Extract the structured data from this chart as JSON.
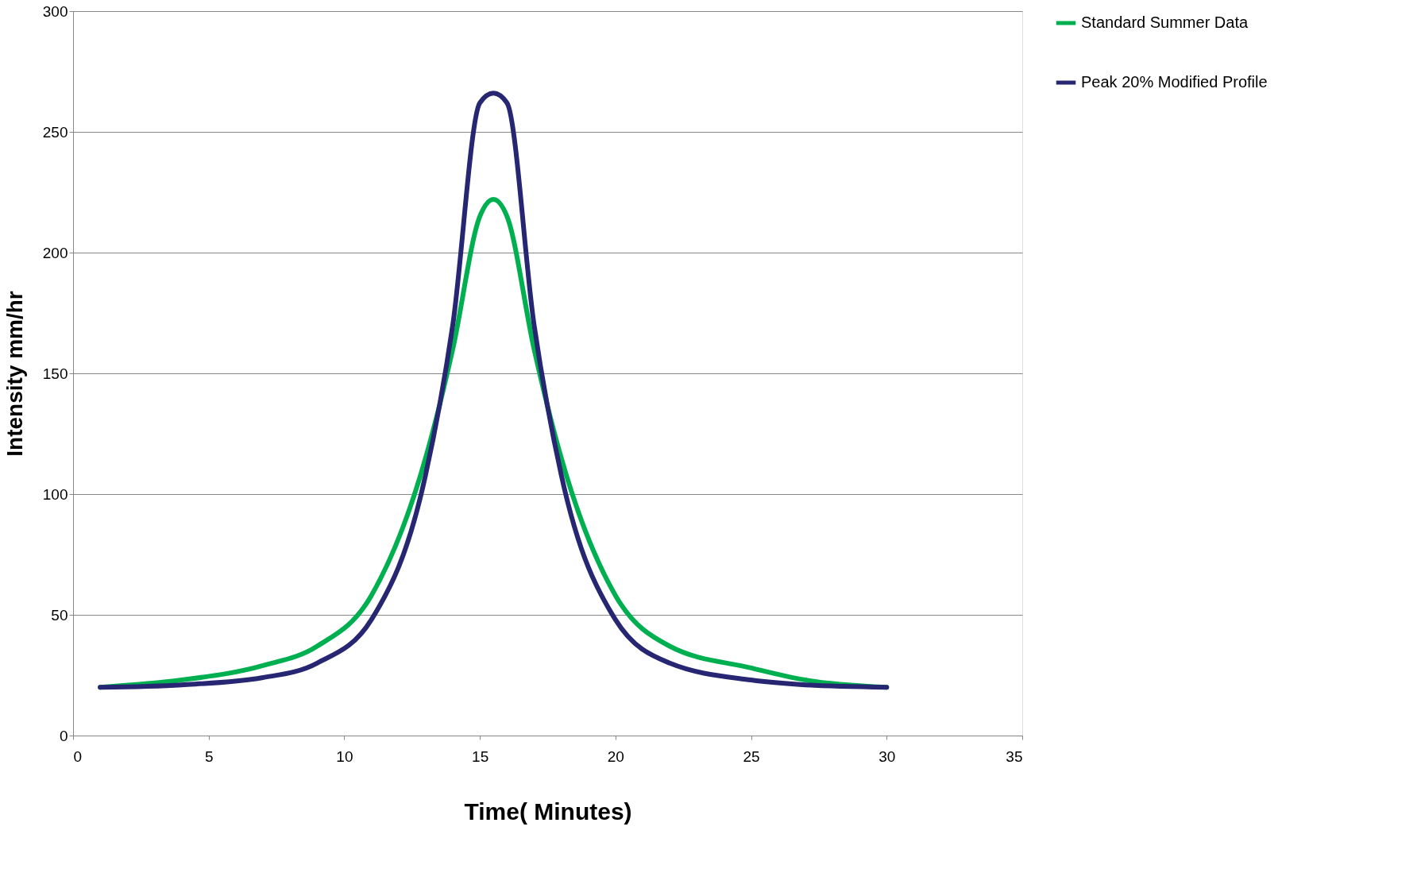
{
  "chart_data": {
    "type": "line",
    "xlabel": "Time( Minutes)",
    "ylabel": "Intensity mm/hr",
    "x": [
      1,
      4,
      7,
      9,
      11,
      13,
      14,
      15,
      15.5,
      16,
      17,
      18,
      20,
      22,
      25,
      27,
      30
    ],
    "series": [
      {
        "name": "Standard Summer Data",
        "color": "#00b050",
        "values": [
          20,
          23,
          29,
          37,
          58,
          115,
          160,
          215,
          222,
          215,
          160,
          115,
          58,
          37,
          28,
          23,
          20
        ]
      },
      {
        "name": "Peak 20% Modified Profile",
        "color": "#262673",
        "values": [
          20,
          21,
          24,
          30,
          48,
          108,
          170,
          262,
          266,
          262,
          170,
          108,
          48,
          30,
          23,
          21,
          20
        ]
      }
    ],
    "xlim": [
      0,
      35
    ],
    "xticks": [
      0,
      5,
      10,
      15,
      20,
      25,
      30,
      35
    ],
    "ylim": [
      0,
      300
    ],
    "yticks": [
      0,
      50,
      100,
      150,
      200,
      250,
      300
    ],
    "grid": "y",
    "legend": "right",
    "marker": "none",
    "line_style": "solid"
  }
}
